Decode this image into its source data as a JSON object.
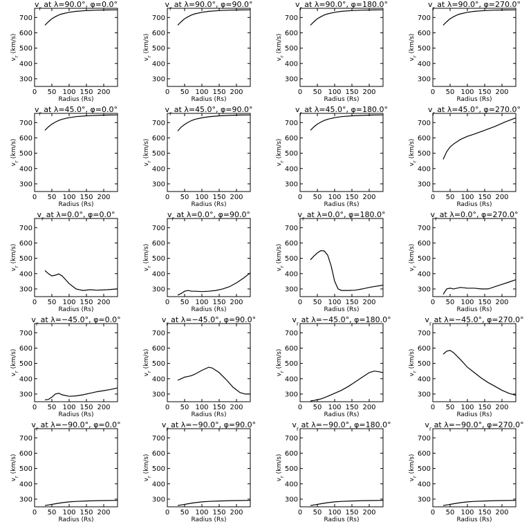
{
  "chart_data": [
    {
      "type": "line",
      "title": "v_r at λ=90.0°, φ=0.0°",
      "xlabel": "Radius (Rs)",
      "ylabel": "v_r (km/s)",
      "xlim": [
        0,
        240
      ],
      "ylim": [
        250,
        760
      ],
      "x": [
        30,
        40,
        50,
        60,
        70,
        80,
        100,
        120,
        150,
        180,
        210,
        240
      ],
      "values": [
        650,
        672,
        692,
        705,
        716,
        724,
        734,
        740,
        745,
        748,
        749,
        750
      ]
    },
    {
      "type": "line",
      "title": "v_r at λ=90.0°, φ=90.0°",
      "xlabel": "Radius (Rs)",
      "ylabel": "v_r (km/s)",
      "xlim": [
        0,
        240
      ],
      "ylim": [
        250,
        760
      ],
      "x": [
        30,
        40,
        50,
        60,
        70,
        80,
        100,
        120,
        150,
        180,
        210,
        240
      ],
      "values": [
        650,
        672,
        692,
        705,
        716,
        724,
        734,
        740,
        745,
        748,
        749,
        750
      ]
    },
    {
      "type": "line",
      "title": "v_r at λ=90.0°, φ=180.0°",
      "xlabel": "Radius (Rs)",
      "ylabel": "v_r (km/s)",
      "xlim": [
        0,
        240
      ],
      "ylim": [
        250,
        760
      ],
      "x": [
        30,
        40,
        50,
        60,
        70,
        80,
        100,
        120,
        150,
        180,
        210,
        240
      ],
      "values": [
        650,
        672,
        692,
        705,
        716,
        724,
        734,
        740,
        745,
        748,
        749,
        750
      ]
    },
    {
      "type": "line",
      "title": "v_r at λ=90.0°, φ=270.0°",
      "xlabel": "Radius (Rs)",
      "ylabel": "v_r (km/s)",
      "xlim": [
        0,
        240
      ],
      "ylim": [
        250,
        760
      ],
      "x": [
        30,
        40,
        50,
        60,
        70,
        80,
        100,
        120,
        150,
        180,
        210,
        240
      ],
      "values": [
        650,
        672,
        692,
        705,
        716,
        724,
        734,
        740,
        745,
        748,
        749,
        750
      ]
    },
    {
      "type": "line",
      "title": "v_r at λ=45.0°, φ=0.0°",
      "xlabel": "Radius (Rs)",
      "ylabel": "v_r (km/s)",
      "xlim": [
        0,
        240
      ],
      "ylim": [
        250,
        760
      ],
      "x": [
        30,
        40,
        50,
        60,
        70,
        80,
        100,
        120,
        150,
        180,
        210,
        240
      ],
      "values": [
        650,
        672,
        690,
        703,
        714,
        722,
        732,
        739,
        744,
        747,
        749,
        750
      ]
    },
    {
      "type": "line",
      "title": "v_r at λ=45.0°, φ=90.0°",
      "xlabel": "Radius (Rs)",
      "ylabel": "v_r (km/s)",
      "xlim": [
        0,
        240
      ],
      "ylim": [
        250,
        760
      ],
      "x": [
        30,
        40,
        50,
        60,
        70,
        80,
        100,
        120,
        150,
        180,
        210,
        240
      ],
      "values": [
        645,
        670,
        688,
        702,
        713,
        721,
        731,
        738,
        744,
        747,
        749,
        750
      ]
    },
    {
      "type": "line",
      "title": "v_r at λ=45.0°, φ=180.0°",
      "xlabel": "Radius (Rs)",
      "ylabel": "v_r (km/s)",
      "xlim": [
        0,
        240
      ],
      "ylim": [
        250,
        760
      ],
      "x": [
        30,
        40,
        50,
        60,
        70,
        80,
        100,
        120,
        150,
        180,
        210,
        240
      ],
      "values": [
        650,
        672,
        690,
        703,
        714,
        722,
        732,
        739,
        744,
        747,
        749,
        750
      ]
    },
    {
      "type": "line",
      "title": "v_r at λ=45.0°, φ=270.0°",
      "xlabel": "Radius (Rs)",
      "ylabel": "v_r (km/s)",
      "xlim": [
        0,
        240
      ],
      "ylim": [
        250,
        760
      ],
      "x": [
        30,
        40,
        50,
        60,
        70,
        80,
        100,
        120,
        150,
        180,
        210,
        240
      ],
      "values": [
        460,
        510,
        540,
        560,
        575,
        590,
        610,
        625,
        650,
        675,
        705,
        730
      ]
    },
    {
      "type": "line",
      "title": "v_r at λ=0.0°, φ=0.0°",
      "xlabel": "Radius (Rs)",
      "ylabel": "v_r (km/s)",
      "xlim": [
        0,
        240
      ],
      "ylim": [
        250,
        760
      ],
      "x": [
        30,
        40,
        50,
        60,
        70,
        80,
        90,
        100,
        120,
        140,
        160,
        180,
        210,
        240
      ],
      "values": [
        420,
        400,
        385,
        390,
        398,
        385,
        360,
        335,
        300,
        290,
        295,
        292,
        295,
        300
      ]
    },
    {
      "type": "line",
      "title": "v_r at λ=0.0°, φ=90.0°",
      "xlabel": "Radius (Rs)",
      "ylabel": "v_r (km/s)",
      "xlim": [
        0,
        240
      ],
      "ylim": [
        250,
        760
      ],
      "x": [
        30,
        40,
        50,
        60,
        70,
        80,
        100,
        120,
        140,
        160,
        180,
        200,
        220,
        240
      ],
      "values": [
        260,
        270,
        285,
        290,
        285,
        285,
        283,
        285,
        290,
        300,
        315,
        340,
        370,
        405
      ]
    },
    {
      "type": "line",
      "title": "v_r at λ=0.0°, φ=180.0°",
      "xlabel": "Radius (Rs)",
      "ylabel": "v_r (km/s)",
      "xlim": [
        0,
        240
      ],
      "ylim": [
        250,
        760
      ],
      "x": [
        30,
        40,
        50,
        60,
        70,
        80,
        90,
        100,
        110,
        120,
        140,
        160,
        180,
        200,
        240
      ],
      "values": [
        490,
        515,
        535,
        550,
        548,
        520,
        450,
        350,
        300,
        290,
        290,
        292,
        300,
        310,
        325
      ]
    },
    {
      "type": "line",
      "title": "v_r at λ=0.0°, φ=270.0°",
      "xlabel": "Radius (Rs)",
      "ylabel": "v_r (km/s)",
      "xlim": [
        0,
        240
      ],
      "ylim": [
        250,
        760
      ],
      "x": [
        30,
        40,
        50,
        60,
        80,
        100,
        120,
        140,
        160,
        180,
        200,
        220,
        240
      ],
      "values": [
        265,
        300,
        305,
        300,
        310,
        305,
        305,
        300,
        300,
        315,
        330,
        345,
        360
      ]
    },
    {
      "type": "line",
      "title": "v_r at λ=−45.0°, φ=0.0°",
      "xlabel": "Radius (Rs)",
      "ylabel": "v_r (km/s)",
      "xlim": [
        0,
        240
      ],
      "ylim": [
        250,
        760
      ],
      "x": [
        30,
        40,
        50,
        60,
        70,
        80,
        100,
        120,
        140,
        160,
        180,
        200,
        220,
        240
      ],
      "values": [
        262,
        265,
        280,
        300,
        305,
        295,
        285,
        288,
        295,
        305,
        315,
        322,
        330,
        340
      ]
    },
    {
      "type": "line",
      "title": "v_r at λ=−45.0°, φ=90.0°",
      "xlabel": "Radius (Rs)",
      "ylabel": "v_r (km/s)",
      "xlim": [
        0,
        240
      ],
      "ylim": [
        250,
        760
      ],
      "x": [
        30,
        40,
        50,
        60,
        70,
        80,
        100,
        120,
        130,
        150,
        170,
        190,
        210,
        225,
        240
      ],
      "values": [
        390,
        400,
        410,
        415,
        420,
        430,
        455,
        475,
        470,
        440,
        395,
        345,
        310,
        300,
        300
      ]
    },
    {
      "type": "line",
      "title": "v_r at λ=−45.0°, φ=180.0°",
      "xlabel": "Radius (Rs)",
      "ylabel": "v_r (km/s)",
      "xlim": [
        0,
        240
      ],
      "ylim": [
        250,
        760
      ],
      "x": [
        30,
        40,
        60,
        80,
        100,
        120,
        140,
        160,
        180,
        200,
        215,
        230,
        240
      ],
      "values": [
        255,
        258,
        268,
        285,
        305,
        325,
        350,
        380,
        410,
        440,
        450,
        445,
        440
      ]
    },
    {
      "type": "line",
      "title": "v_r at λ=−45.0°, φ=270.0°",
      "xlabel": "Radius (Rs)",
      "ylabel": "v_r (km/s)",
      "xlim": [
        0,
        240
      ],
      "ylim": [
        250,
        760
      ],
      "x": [
        30,
        40,
        50,
        60,
        80,
        100,
        120,
        140,
        160,
        180,
        200,
        220,
        240
      ],
      "values": [
        560,
        580,
        585,
        570,
        525,
        475,
        440,
        405,
        375,
        350,
        325,
        305,
        292
      ]
    },
    {
      "type": "line",
      "title": "v_r at λ=−90.0°, φ=0.0°",
      "xlabel": "Radius (Rs)",
      "ylabel": "v_r (km/s)",
      "xlim": [
        0,
        240
      ],
      "ylim": [
        250,
        760
      ],
      "x": [
        30,
        40,
        60,
        80,
        100,
        120,
        150,
        180,
        210,
        240
      ],
      "values": [
        258,
        262,
        270,
        277,
        282,
        285,
        288,
        290,
        291,
        292
      ]
    },
    {
      "type": "line",
      "title": "v_r at λ=−90.0°, φ=90.0°",
      "xlabel": "Radius (Rs)",
      "ylabel": "v_r (km/s)",
      "xlim": [
        0,
        240
      ],
      "ylim": [
        250,
        760
      ],
      "x": [
        30,
        40,
        60,
        80,
        100,
        120,
        150,
        180,
        210,
        240
      ],
      "values": [
        258,
        262,
        270,
        277,
        282,
        285,
        288,
        290,
        291,
        292
      ]
    },
    {
      "type": "line",
      "title": "v_r at λ=−90.0°, φ=180.0°",
      "xlabel": "Radius (Rs)",
      "ylabel": "v_r (km/s)",
      "xlim": [
        0,
        240
      ],
      "ylim": [
        250,
        760
      ],
      "x": [
        30,
        40,
        60,
        80,
        100,
        120,
        150,
        180,
        210,
        240
      ],
      "values": [
        258,
        262,
        270,
        277,
        282,
        285,
        288,
        290,
        291,
        292
      ]
    },
    {
      "type": "line",
      "title": "v_r at λ=−90.0°, φ=270.0°",
      "xlabel": "Radius (Rs)",
      "ylabel": "v_r (km/s)",
      "xlim": [
        0,
        240
      ],
      "ylim": [
        250,
        760
      ],
      "x": [
        30,
        40,
        60,
        80,
        100,
        120,
        150,
        180,
        210,
        240
      ],
      "values": [
        258,
        262,
        270,
        277,
        282,
        285,
        288,
        290,
        291,
        292
      ]
    }
  ],
  "axis_ticks": {
    "x": [
      0,
      50,
      100,
      150,
      200
    ],
    "y": [
      300,
      400,
      500,
      600,
      700
    ]
  }
}
